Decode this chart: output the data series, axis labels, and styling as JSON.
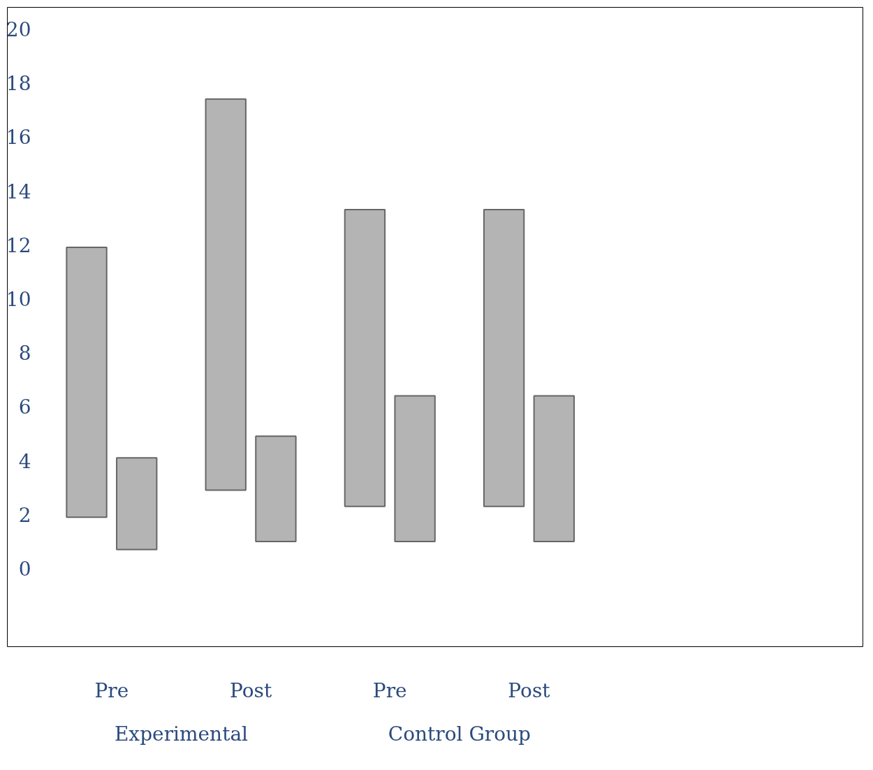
{
  "chart_data": {
    "type": "bar",
    "categories": [
      "Pre",
      "Post",
      "Pre",
      "Post"
    ],
    "series": [
      {
        "color": "#b4b4b4",
        "values": [
          10.0,
          14.5,
          11.0,
          11.0
        ],
        "base": [
          1.9,
          2.9,
          2.3,
          2.3
        ]
      },
      {
        "color": "#b4b4b4",
        "values": [
          3.4,
          3.9,
          5.4,
          5.4
        ],
        "base": [
          0.7,
          1.0,
          1.0,
          1.0
        ]
      }
    ],
    "ylim": [
      -2.9,
      20.8
    ],
    "yticks": [
      0,
      2,
      4,
      6,
      8,
      10,
      12,
      14,
      16,
      18,
      20
    ],
    "annotations": [
      "Experimental",
      "Control Group"
    ]
  }
}
